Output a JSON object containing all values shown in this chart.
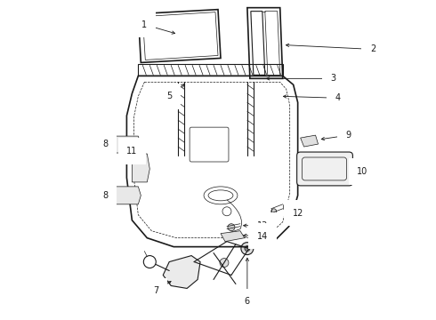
{
  "bg_color": "#ffffff",
  "line_color": "#1a1a1a",
  "fig_width": 4.9,
  "fig_height": 3.6,
  "dpi": 100,
  "label_fs": 7,
  "lw_thick": 1.2,
  "lw_med": 0.8,
  "lw_thin": 0.5
}
